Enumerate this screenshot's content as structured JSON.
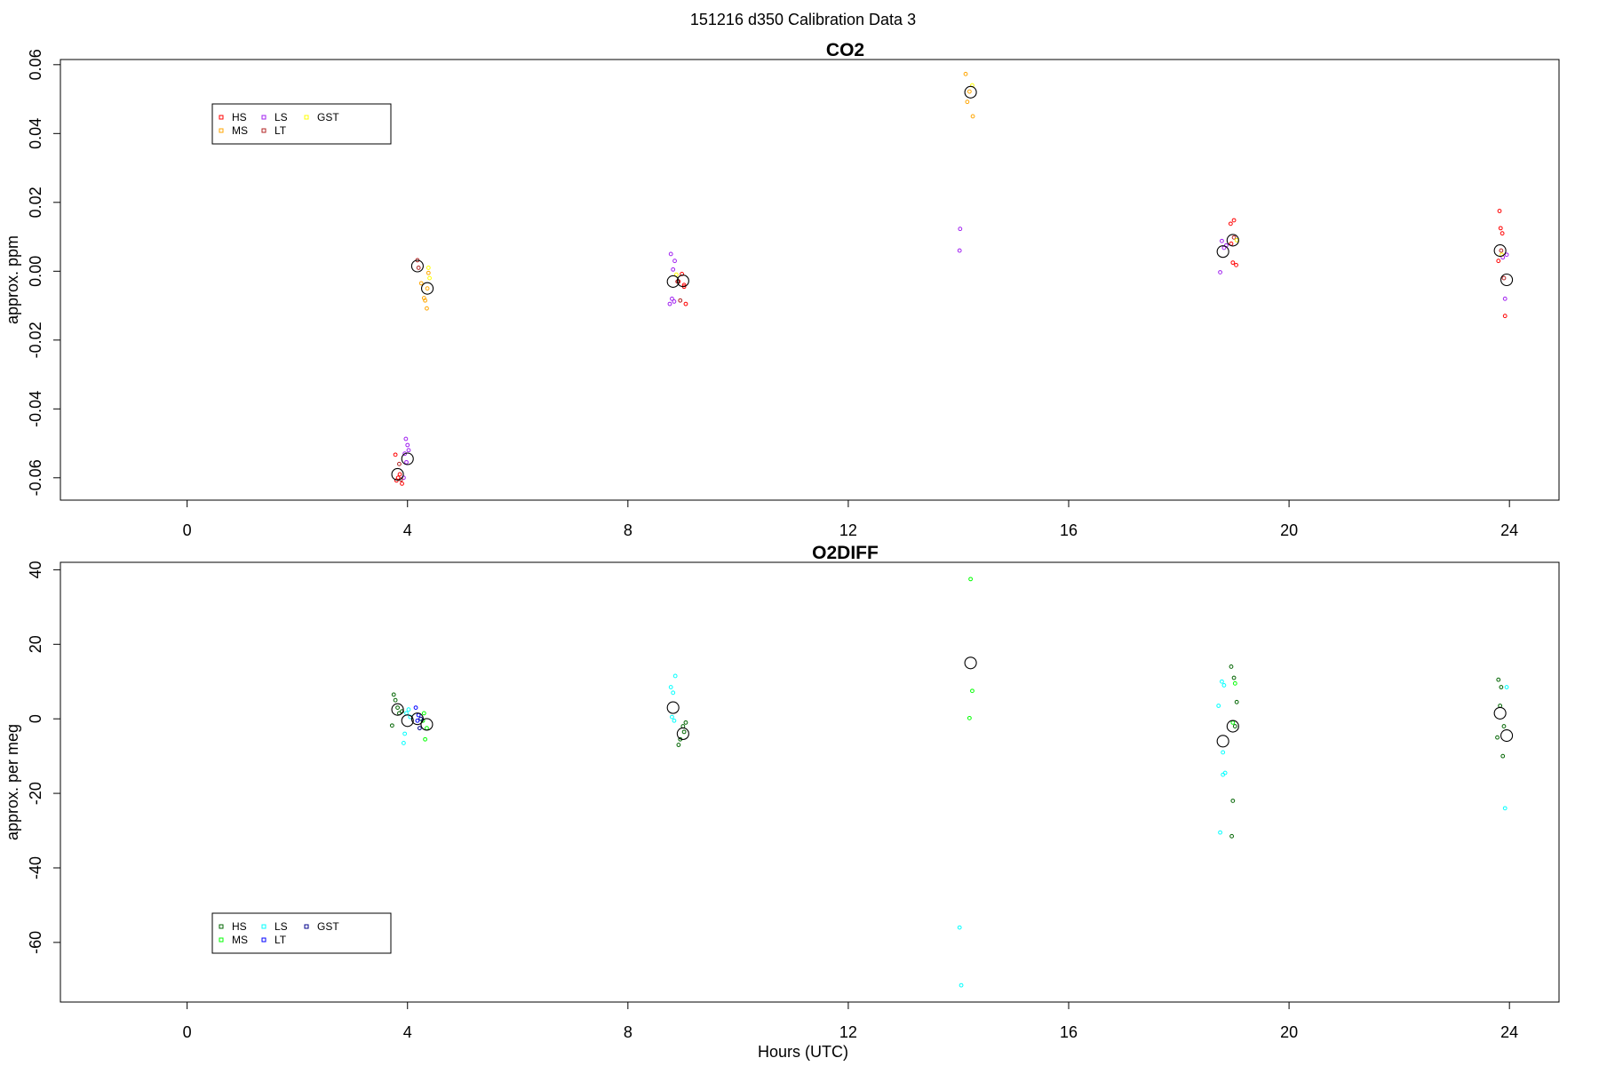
{
  "suptitle": "151216   d350   Calibration Data 3",
  "chart_data": [
    {
      "type": "scatter",
      "title": "CO2",
      "xlabel": "",
      "ylabel": "approx. ppm",
      "xlim": [
        -2.3,
        24.9
      ],
      "ylim": [
        -0.0665,
        0.0615
      ],
      "xticks": [
        "0",
        "4",
        "8",
        "12",
        "16",
        "20",
        "24"
      ],
      "xtick_values": [
        0,
        4,
        8,
        12,
        16,
        20,
        24
      ],
      "yticks": [
        "-0.06",
        "-0.04",
        "-0.02",
        "0.00",
        "0.02",
        "0.04",
        "0.06"
      ],
      "ytick_values": [
        -0.06,
        -0.04,
        -0.02,
        0.0,
        0.02,
        0.04,
        0.06
      ],
      "legend": {
        "position": "top-left",
        "entries": [
          {
            "label": "HS",
            "color": "#ff0000"
          },
          {
            "label": "MS",
            "color": "#ffa500"
          },
          {
            "label": "LS",
            "color": "#a020f0"
          },
          {
            "label": "LT",
            "color": "#b22222"
          },
          {
            "label": "GST",
            "color": "#ffff00"
          }
        ]
      },
      "series": [
        {
          "name": "HS",
          "color": "#ff0000",
          "points": [
            [
              3.78,
              -0.0533
            ],
            [
              3.8,
              -0.0608
            ],
            [
              3.83,
              -0.06
            ],
            [
              3.86,
              -0.059
            ],
            [
              3.9,
              -0.0617
            ],
            [
              8.92,
              -0.003
            ],
            [
              8.98,
              -0.0008
            ],
            [
              9.02,
              -0.0045
            ],
            [
              9.05,
              -0.0095
            ],
            [
              9.02,
              -0.004
            ],
            [
              18.95,
              0.008
            ],
            [
              19.0,
              0.0148
            ],
            [
              18.98,
              0.0025
            ],
            [
              19.04,
              0.0018
            ],
            [
              18.94,
              0.0138
            ],
            [
              23.82,
              0.0175
            ],
            [
              23.84,
              0.0125
            ],
            [
              23.8,
              0.003
            ],
            [
              23.87,
              0.011
            ],
            [
              23.92,
              -0.013
            ]
          ]
        },
        {
          "name": "MS",
          "color": "#ffa500",
          "points": [
            [
              4.25,
              -0.0035
            ],
            [
              4.3,
              -0.0078
            ],
            [
              4.35,
              -0.0108
            ],
            [
              4.36,
              -0.005
            ],
            [
              4.38,
              -0.0005
            ],
            [
              4.32,
              -0.0085
            ],
            [
              14.13,
              0.0573
            ],
            [
              14.2,
              0.0522
            ],
            [
              14.26,
              0.045
            ],
            [
              14.16,
              0.0492
            ]
          ]
        },
        {
          "name": "LS",
          "color": "#a020f0",
          "points": [
            [
              3.97,
              -0.0487
            ],
            [
              4.0,
              -0.0505
            ],
            [
              3.95,
              -0.053
            ],
            [
              4.02,
              -0.052
            ],
            [
              3.93,
              -0.06
            ],
            [
              3.98,
              -0.0555
            ],
            [
              8.78,
              0.005
            ],
            [
              8.82,
              0.0005
            ],
            [
              8.85,
              0.003
            ],
            [
              8.8,
              -0.008
            ],
            [
              8.76,
              -0.0095
            ],
            [
              8.84,
              -0.0088
            ],
            [
              14.03,
              0.0123
            ],
            [
              14.02,
              0.006
            ],
            [
              18.75,
              -0.0003
            ],
            [
              18.78,
              0.0088
            ],
            [
              18.82,
              0.0068
            ],
            [
              18.86,
              0.0075
            ],
            [
              23.95,
              0.0048
            ],
            [
              23.92,
              -0.008
            ],
            [
              23.88,
              0.004
            ]
          ]
        },
        {
          "name": "LT",
          "color": "#b22222",
          "points": [
            [
              3.85,
              -0.056
            ],
            [
              3.88,
              -0.0605
            ],
            [
              4.18,
              0.0032
            ],
            [
              4.2,
              0.001
            ],
            [
              8.9,
              -0.003
            ],
            [
              8.95,
              -0.0085
            ],
            [
              19.0,
              0.0098
            ],
            [
              23.85,
              0.006
            ],
            [
              23.9,
              -0.002
            ]
          ]
        },
        {
          "name": "GST",
          "color": "#ffff00",
          "points": [
            [
              4.38,
              0.001
            ],
            [
              4.4,
              -0.002
            ],
            [
              14.25,
              0.054
            ],
            [
              8.88,
              -0.001
            ],
            [
              19.05,
              0.009
            ],
            [
              23.86,
              0.0048
            ]
          ]
        },
        {
          "name": "",
          "color": "#000000",
          "large": true,
          "points": [
            [
              3.82,
              -0.059
            ],
            [
              4.0,
              -0.0545
            ],
            [
              4.18,
              0.0015
            ],
            [
              4.36,
              -0.005
            ],
            [
              8.82,
              -0.003
            ],
            [
              9.0,
              -0.0028
            ],
            [
              14.22,
              0.052
            ],
            [
              18.8,
              0.0057
            ],
            [
              18.98,
              0.009
            ],
            [
              23.83,
              0.006
            ],
            [
              23.95,
              -0.0025
            ]
          ]
        }
      ]
    },
    {
      "type": "scatter",
      "title": "O2DIFF",
      "xlabel": "Hours (UTC)",
      "ylabel": "approx. per meg",
      "xlim": [
        -2.3,
        24.9
      ],
      "ylim": [
        -76,
        42
      ],
      "xticks": [
        "0",
        "4",
        "8",
        "12",
        "16",
        "20",
        "24"
      ],
      "xtick_values": [
        0,
        4,
        8,
        12,
        16,
        20,
        24
      ],
      "yticks": [
        "-60",
        "-40",
        "-20",
        "0",
        "20",
        "40"
      ],
      "ytick_values": [
        -60,
        -40,
        -20,
        0,
        20,
        40
      ],
      "legend": {
        "position": "bottom-left",
        "entries": [
          {
            "label": "HS",
            "color": "#006400"
          },
          {
            "label": "MS",
            "color": "#00ff00"
          },
          {
            "label": "LS",
            "color": "#00ffff"
          },
          {
            "label": "LT",
            "color": "#0000ff"
          },
          {
            "label": "GST",
            "color": "#00008b"
          }
        ]
      },
      "series": [
        {
          "name": "HS",
          "color": "#006400",
          "points": [
            [
              3.75,
              6.5
            ],
            [
              3.78,
              5.0
            ],
            [
              3.82,
              3.0
            ],
            [
              3.85,
              1.5
            ],
            [
              3.72,
              -1.8
            ],
            [
              3.9,
              2.0
            ],
            [
              8.95,
              -5.5
            ],
            [
              8.92,
              -7.0
            ],
            [
              9.0,
              -2.0
            ],
            [
              9.05,
              -1.0
            ],
            [
              9.02,
              -3.5
            ],
            [
              18.95,
              14.0
            ],
            [
              19.0,
              11.0
            ],
            [
              19.05,
              4.5
            ],
            [
              18.98,
              -22.0
            ],
            [
              18.96,
              -31.5
            ],
            [
              19.02,
              -2.0
            ],
            [
              23.8,
              10.5
            ],
            [
              23.85,
              8.5
            ],
            [
              23.83,
              3.5
            ],
            [
              23.78,
              -5.0
            ],
            [
              23.88,
              -10.0
            ],
            [
              23.9,
              -2.0
            ]
          ]
        },
        {
          "name": "MS",
          "color": "#00ff00",
          "points": [
            [
              4.3,
              1.5
            ],
            [
              4.32,
              -5.5
            ],
            [
              4.35,
              -2.5
            ],
            [
              4.28,
              -0.5
            ],
            [
              14.22,
              37.5
            ],
            [
              14.25,
              7.5
            ],
            [
              14.2,
              0.2
            ],
            [
              19.02,
              9.5
            ],
            [
              18.98,
              -1.0
            ]
          ]
        },
        {
          "name": "LS",
          "color": "#00ffff",
          "points": [
            [
              3.93,
              -6.5
            ],
            [
              3.95,
              -4.0
            ],
            [
              3.98,
              1.5
            ],
            [
              4.02,
              2.5
            ],
            [
              4.05,
              0.5
            ],
            [
              8.78,
              8.5
            ],
            [
              8.86,
              11.5
            ],
            [
              8.82,
              7.0
            ],
            [
              8.8,
              0.5
            ],
            [
              8.84,
              -0.5
            ],
            [
              14.02,
              -56.0
            ],
            [
              14.05,
              -71.5
            ],
            [
              18.72,
              3.5
            ],
            [
              18.78,
              10.0
            ],
            [
              18.82,
              9.0
            ],
            [
              18.84,
              -14.5
            ],
            [
              18.8,
              -15.0
            ],
            [
              18.75,
              -30.5
            ],
            [
              18.8,
              -9.0
            ],
            [
              23.95,
              8.5
            ],
            [
              23.92,
              -24.0
            ]
          ]
        },
        {
          "name": "LT",
          "color": "#0000ff",
          "points": [
            [
              4.15,
              3.0
            ],
            [
              4.18,
              -0.5
            ],
            [
              4.2,
              1.0
            ]
          ]
        },
        {
          "name": "GST",
          "color": "#00008b",
          "points": [
            [
              4.22,
              -2.5
            ],
            [
              4.24,
              0.0
            ]
          ]
        },
        {
          "name": "",
          "color": "#000000",
          "large": true,
          "points": [
            [
              3.82,
              2.5
            ],
            [
              4.0,
              -0.5
            ],
            [
              4.18,
              0.0
            ],
            [
              4.35,
              -1.5
            ],
            [
              8.82,
              3.0
            ],
            [
              9.0,
              -4.0
            ],
            [
              14.22,
              15.0
            ],
            [
              18.8,
              -6.0
            ],
            [
              18.98,
              -2.0
            ],
            [
              23.83,
              1.5
            ],
            [
              23.95,
              -4.5
            ]
          ]
        }
      ]
    }
  ]
}
